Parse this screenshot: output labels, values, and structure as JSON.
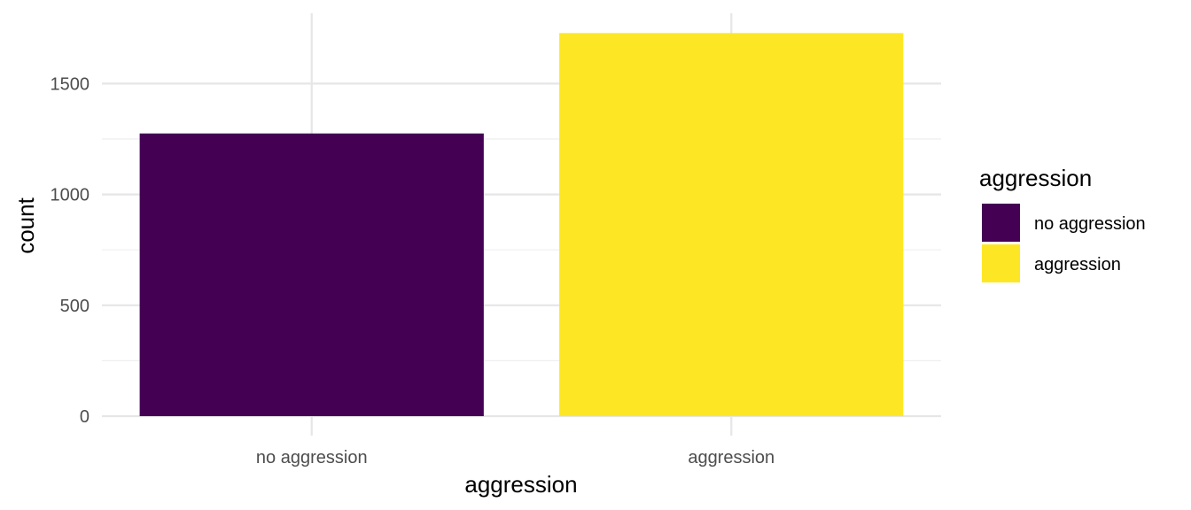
{
  "chart_data": {
    "type": "bar",
    "categories": [
      "no aggression",
      "aggression"
    ],
    "values": [
      1275,
      1728
    ],
    "colors": [
      "#440154",
      "#FDE725"
    ],
    "title": "",
    "xlabel": "aggression",
    "ylabel": "count",
    "ylim": [
      0,
      1735
    ],
    "yticks": [
      0,
      500,
      1000,
      1500
    ],
    "ytick_labels": [
      "0",
      "500",
      "1000",
      "1500"
    ],
    "grid": true,
    "legend": {
      "title": "aggression",
      "placement": "right",
      "entries": [
        "no aggression",
        "aggression"
      ]
    }
  }
}
